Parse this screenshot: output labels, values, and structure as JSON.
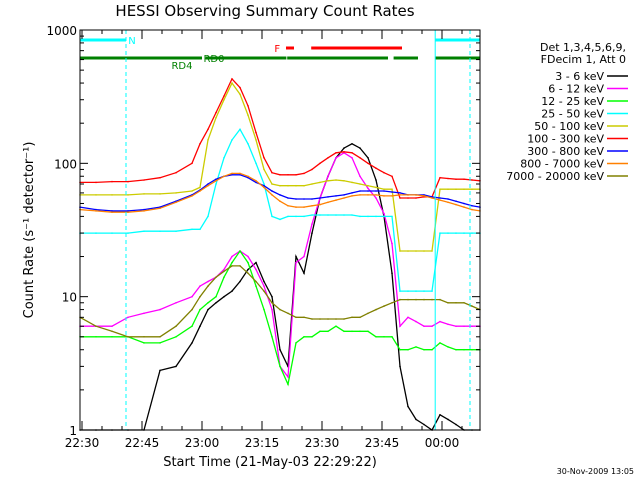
{
  "chart_data": {
    "type": "line",
    "title": "HESSI Observing Summary Count Rates",
    "xlabel": "Start Time (21-May-03 22:29:22)",
    "ylabel": "Count Rate (s⁻¹ detector⁻¹)",
    "xlim": [
      0,
      100
    ],
    "ylim": [
      1,
      1000
    ],
    "yscale": "log",
    "grid": false,
    "legend_position": "right",
    "x_ticks": [
      {
        "x": 0.5,
        "label": "22:30"
      },
      {
        "x": 15.5,
        "label": "22:45"
      },
      {
        "x": 30.5,
        "label": "23:00"
      },
      {
        "x": 45.5,
        "label": "23:15"
      },
      {
        "x": 60.5,
        "label": "23:30"
      },
      {
        "x": 75.5,
        "label": "23:45"
      },
      {
        "x": 90.5,
        "label": "00:00"
      }
    ],
    "y_ticks": [
      {
        "y": 1,
        "label": "1"
      },
      {
        "y": 10,
        "label": "10"
      },
      {
        "y": 100,
        "label": "100"
      },
      {
        "y": 1000,
        "label": "1000"
      }
    ],
    "legend_header": [
      "Det 1,3,4,5,6,9,",
      "FDecim 1, Att 0"
    ],
    "x": [
      0,
      4,
      8,
      12,
      16,
      20,
      24,
      28,
      30,
      32,
      34,
      36,
      38,
      40,
      42,
      44,
      46,
      48,
      50,
      52,
      54,
      56,
      58,
      60,
      62,
      64,
      66,
      68,
      70,
      72,
      74,
      76,
      78,
      80,
      82,
      84,
      86,
      88,
      90,
      92,
      94,
      96,
      98,
      100
    ],
    "series": [
      {
        "name": "3 - 6 keV",
        "color": "#000000",
        "values": [
          1,
          1,
          1,
          1,
          1,
          2.8,
          3,
          4.5,
          6,
          8,
          9,
          10,
          11,
          13,
          16,
          18,
          13,
          10,
          4,
          3,
          20,
          15,
          30,
          55,
          80,
          110,
          130,
          140,
          130,
          110,
          75,
          40,
          15,
          3,
          1.5,
          1.2,
          1.1,
          1,
          1.3,
          1.2,
          1.1,
          1,
          1,
          1
        ]
      },
      {
        "name": "6 - 12 keV",
        "color": "#ff00ff",
        "values": [
          6,
          6,
          6,
          7,
          7.5,
          8,
          9,
          10,
          12,
          13,
          14,
          16,
          20,
          22,
          20,
          16,
          12,
          8,
          3,
          2.5,
          18,
          20,
          35,
          55,
          80,
          110,
          120,
          110,
          80,
          65,
          55,
          42,
          25,
          6,
          7,
          6.5,
          6,
          6,
          6.5,
          6.2,
          6,
          6,
          6,
          6
        ]
      },
      {
        "name": "12 - 25 keV",
        "color": "#00ff00",
        "values": [
          5,
          5,
          5,
          5,
          4.5,
          4.5,
          5,
          6,
          8,
          9,
          10,
          14,
          18,
          22,
          18,
          12,
          8,
          5,
          3,
          2.2,
          4.5,
          5,
          5,
          5.5,
          5.5,
          6,
          5.5,
          5.5,
          5.5,
          5.5,
          5,
          5,
          5,
          4,
          4,
          4.2,
          4,
          4,
          4.5,
          4.2,
          4,
          4,
          4,
          4
        ]
      },
      {
        "name": "25 - 50 keV",
        "color": "#00ffff",
        "values": [
          30,
          30,
          30,
          30,
          31,
          31,
          31,
          32,
          32,
          40,
          70,
          110,
          150,
          180,
          140,
          100,
          70,
          40,
          38,
          40,
          40,
          40,
          41,
          41,
          41,
          41,
          41,
          41,
          40,
          40,
          40,
          40,
          40,
          11,
          11,
          11,
          11,
          11,
          30,
          30,
          30,
          30,
          30,
          30
        ]
      },
      {
        "name": "50 - 100 keV",
        "color": "#cccc00",
        "values": [
          58,
          58,
          58,
          58,
          59,
          59,
          60,
          62,
          66,
          150,
          220,
          300,
          400,
          330,
          230,
          150,
          90,
          70,
          68,
          68,
          68,
          68,
          70,
          72,
          74,
          75,
          74,
          72,
          70,
          68,
          66,
          64,
          64,
          22,
          22,
          22,
          22,
          22,
          64,
          64,
          64,
          64,
          64,
          64
        ]
      },
      {
        "name": "100 - 300 keV",
        "color": "#ff0000",
        "values": [
          72,
          72,
          73,
          73,
          75,
          78,
          85,
          100,
          140,
          180,
          240,
          320,
          430,
          370,
          270,
          170,
          110,
          85,
          82,
          82,
          82,
          84,
          90,
          100,
          110,
          120,
          122,
          120,
          110,
          100,
          92,
          85,
          80,
          55,
          55,
          55,
          56,
          56,
          78,
          77,
          76,
          76,
          75,
          74
        ]
      },
      {
        "name": "300 - 800 keV",
        "color": "#0000ff",
        "values": [
          47,
          45,
          44,
          44,
          45,
          47,
          52,
          58,
          63,
          70,
          76,
          80,
          82,
          82,
          78,
          72,
          68,
          62,
          58,
          55,
          54,
          54,
          54,
          55,
          56,
          57,
          58,
          60,
          62,
          62,
          62,
          62,
          61,
          60,
          58,
          58,
          58,
          56,
          55,
          54,
          52,
          50,
          48,
          47
        ]
      },
      {
        "name": "800 - 7000 keV",
        "color": "#ff8000",
        "values": [
          45,
          44,
          43,
          43,
          44,
          46,
          51,
          57,
          62,
          68,
          74,
          80,
          84,
          84,
          80,
          74,
          66,
          58,
          52,
          48,
          47,
          47,
          48,
          49,
          51,
          53,
          55,
          57,
          58,
          58,
          58,
          57,
          57,
          58,
          58,
          58,
          57,
          55,
          53,
          51,
          49,
          47,
          45,
          44
        ]
      },
      {
        "name": "7000 - 20000 keV",
        "color": "#808000",
        "values": [
          7,
          6,
          5.5,
          5,
          5,
          5,
          6,
          8,
          10,
          12,
          14,
          15.5,
          17,
          17,
          15,
          13,
          11,
          9,
          8,
          7.5,
          7,
          7,
          6.8,
          6.8,
          6.8,
          6.8,
          6.8,
          7,
          7,
          7.5,
          8,
          8.5,
          9,
          9.5,
          9.5,
          9.5,
          9.5,
          9.5,
          9.5,
          9,
          9,
          9,
          8.5,
          8
        ]
      }
    ],
    "state_bars": [
      {
        "label": "N",
        "color": "#00ffff",
        "segments": [
          [
            0,
            11.5
          ],
          [
            88.8,
            100
          ]
        ],
        "label_at": 13
      },
      {
        "label": "F",
        "color": "#ff0000",
        "segments": [
          [
            51.5,
            53.5
          ],
          [
            57.8,
            80.5
          ]
        ],
        "label_at": 49.3
      },
      {
        "label": "RD0",
        "color": "#008000",
        "segments": [
          [
            0,
            30.5
          ],
          [
            31.4,
            51.6
          ],
          [
            51.8,
            77
          ],
          [
            78.4,
            84.5
          ],
          [
            88.8,
            100
          ]
        ],
        "label_at": 33.5
      },
      {
        "label": "RD4",
        "color": "#008000",
        "segments": [],
        "label_at": 25.5
      }
    ],
    "vertical_markers": [
      {
        "x": 11.5,
        "color": "#00ffff",
        "style": "dashed"
      },
      {
        "x": 88.8,
        "color": "#00ffff",
        "style": "solid"
      },
      {
        "x": 97.5,
        "color": "#00ffff",
        "style": "dashed"
      }
    ],
    "footer_date": "30-Nov-2009 13:05"
  }
}
